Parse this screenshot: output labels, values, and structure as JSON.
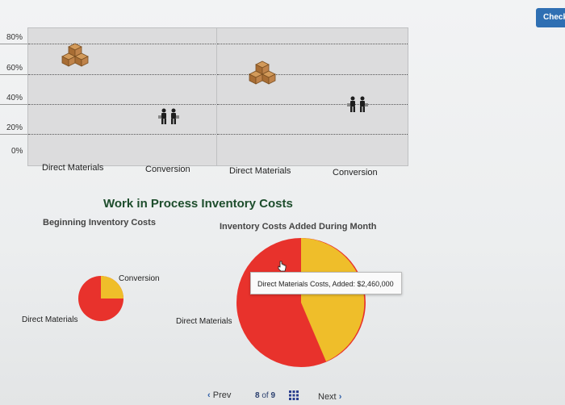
{
  "header": {
    "check_label": "Check"
  },
  "top_chart": {
    "y_ticks": [
      "80%",
      "60%",
      "40%",
      "20%",
      "0%"
    ],
    "x_labels_left": [
      "Direct Materials",
      "Conversion"
    ],
    "x_labels_right": [
      "Direct Materials",
      "Conversion"
    ],
    "colors": {
      "panel": "#dcdcdd",
      "grid": "#555555"
    },
    "icons": [
      "boxes-icon",
      "workers-icon"
    ]
  },
  "wip": {
    "title": "Work in Process Inventory Costs",
    "beginning_heading": "Beginning Inventory Costs",
    "added_heading": "Inventory Costs Added During Month",
    "left_pie_labels": {
      "conversion": "Conversion",
      "direct_materials": "Direct Materials"
    },
    "right_pie_labels": {
      "direct_materials": "Direct Materials"
    },
    "tooltip": "Direct Materials Costs, Added: $2,460,000",
    "colors": {
      "direct_materials": "#e8322c",
      "conversion": "#efbe2a"
    }
  },
  "pager": {
    "prev_label": "Prev",
    "current": "8",
    "of_label": "of",
    "total": "9",
    "next_label": "Next"
  }
}
